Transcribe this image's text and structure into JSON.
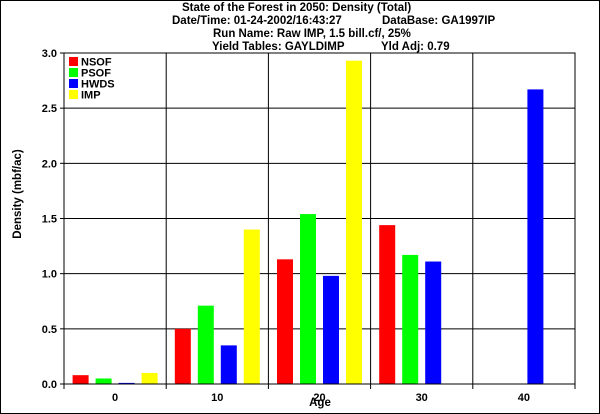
{
  "header": {
    "title": "State of the Forest in 2050: Density (Total)",
    "datetime": "Date/Time: 01-24-2002/16:43:27",
    "database": "DataBase: GA1997IP",
    "run_name": "Run Name: Raw IMP, 1.5 bill.cf/, 25%",
    "yield_tables": "Yield Tables: GAYLDIMP",
    "yld_adj": "Yld Adj: 0.79"
  },
  "chart_data": {
    "type": "bar",
    "title": "State of the Forest in 2050: Density (Total)",
    "xlabel": "Age",
    "ylabel": "Density (mbf/ac)",
    "categories": [
      "0",
      "10",
      "20",
      "30",
      "40"
    ],
    "ylim": [
      0,
      3.0
    ],
    "yticks": [
      "0.0",
      "0.5",
      "1.0",
      "1.5",
      "2.0",
      "2.5",
      "3.0"
    ],
    "grid": true,
    "legend_position": "top-left",
    "series": [
      {
        "name": "NSOF",
        "color": "#ff0000",
        "values": [
          0.08,
          0.5,
          1.13,
          1.44,
          0
        ]
      },
      {
        "name": "PSOF",
        "color": "#00ff00",
        "values": [
          0.05,
          0.71,
          1.54,
          1.17,
          0
        ]
      },
      {
        "name": "HWDS",
        "color": "#0000ff",
        "values": [
          0.01,
          0.35,
          0.98,
          1.11,
          2.67
        ]
      },
      {
        "name": "IMP",
        "color": "#ffff00",
        "values": [
          0.1,
          1.4,
          2.93,
          0,
          0
        ]
      }
    ]
  }
}
